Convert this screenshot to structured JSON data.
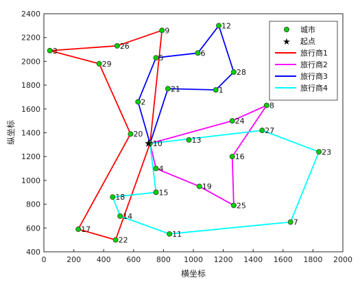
{
  "chart_data": {
    "type": "line",
    "title": "",
    "xlabel": "横坐标",
    "ylabel": "纵坐标",
    "xlim": [
      0,
      2000
    ],
    "ylim": [
      400,
      2400
    ],
    "xticks": [
      0,
      200,
      400,
      600,
      800,
      1000,
      1200,
      1400,
      1600,
      1800,
      2000
    ],
    "yticks": [
      400,
      600,
      800,
      1000,
      1200,
      1400,
      1600,
      1800,
      2000,
      2200,
      2400
    ],
    "grid": false,
    "legend_position": "top-right",
    "legend": {
      "cities": "城市",
      "start": "起点",
      "items": [
        "旅行商1",
        "旅行商2",
        "旅行商3",
        "旅行商4"
      ]
    },
    "colors": {
      "city_fill": "#00d000",
      "city_edge": "#404040",
      "start": "#000000",
      "series": [
        "#ff0000",
        "#ff00ff",
        "#0000ff",
        "#00ffff"
      ]
    },
    "start": {
      "x": 700,
      "y": 1310
    },
    "cities": [
      {
        "label": "1",
        "x": 1150,
        "y": 1760
      },
      {
        "label": "2",
        "x": 630,
        "y": 1660
      },
      {
        "label": "3",
        "x": 40,
        "y": 2090
      },
      {
        "label": "4",
        "x": 750,
        "y": 1100
      },
      {
        "label": "5",
        "x": 750,
        "y": 2030
      },
      {
        "label": "6",
        "x": 1030,
        "y": 2070
      },
      {
        "label": "7",
        "x": 1650,
        "y": 650
      },
      {
        "label": "8",
        "x": 1490,
        "y": 1630
      },
      {
        "label": "9",
        "x": 790,
        "y": 2260
      },
      {
        "label": "10",
        "x": 710,
        "y": 1310
      },
      {
        "label": "11",
        "x": 840,
        "y": 550
      },
      {
        "label": "12",
        "x": 1170,
        "y": 2300
      },
      {
        "label": "13",
        "x": 970,
        "y": 1340
      },
      {
        "label": "14",
        "x": 510,
        "y": 700
      },
      {
        "label": "15",
        "x": 750,
        "y": 900
      },
      {
        "label": "16",
        "x": 1260,
        "y": 1200
      },
      {
        "label": "17",
        "x": 230,
        "y": 590
      },
      {
        "label": "18",
        "x": 460,
        "y": 860
      },
      {
        "label": "19",
        "x": 1040,
        "y": 950
      },
      {
        "label": "20",
        "x": 580,
        "y": 1390
      },
      {
        "label": "21",
        "x": 830,
        "y": 1770
      },
      {
        "label": "22",
        "x": 480,
        "y": 500
      },
      {
        "label": "23",
        "x": 1840,
        "y": 1240
      },
      {
        "label": "24",
        "x": 1260,
        "y": 1500
      },
      {
        "label": "25",
        "x": 1270,
        "y": 790
      },
      {
        "label": "26",
        "x": 490,
        "y": 2130
      },
      {
        "label": "27",
        "x": 1460,
        "y": 1420
      },
      {
        "label": "28",
        "x": 1270,
        "y": 1910
      },
      {
        "label": "29",
        "x": 370,
        "y": 1980
      }
    ],
    "series": [
      {
        "name": "旅行商1",
        "route": [
          "10",
          "9",
          "26",
          "3",
          "29",
          "20",
          "17",
          "22",
          "10"
        ]
      },
      {
        "name": "旅行商2",
        "route": [
          "10",
          "24",
          "8",
          "16",
          "25",
          "19",
          "4",
          "10"
        ]
      },
      {
        "name": "旅行商3",
        "route": [
          "10",
          "2",
          "5",
          "6",
          "12",
          "28",
          "1",
          "21",
          "10"
        ]
      },
      {
        "name": "旅行商4",
        "route": [
          "10",
          "27",
          "23",
          "7",
          "11",
          "14",
          "18",
          "15",
          "10"
        ]
      }
    ]
  }
}
